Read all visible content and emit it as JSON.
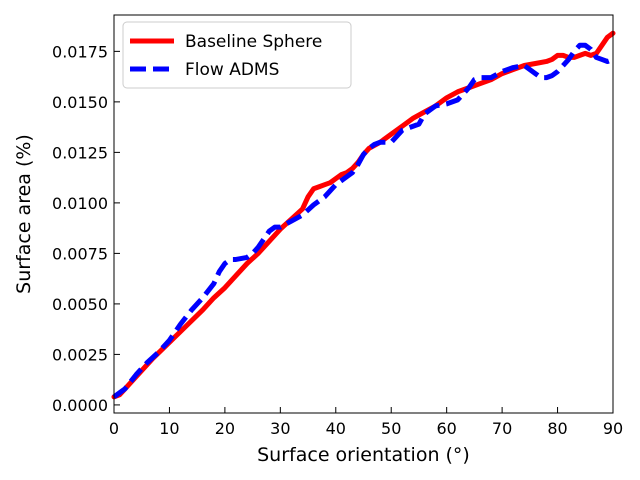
{
  "chart_data": {
    "type": "line",
    "title": "",
    "xlabel": "Surface orientation (°)",
    "ylabel": "Surface area (%)",
    "xlim": [
      0,
      90
    ],
    "ylim": [
      -0.0004,
      0.0193
    ],
    "xticks": [
      0,
      10,
      20,
      30,
      40,
      50,
      60,
      70,
      80,
      90
    ],
    "xtick_labels": [
      "0",
      "10",
      "20",
      "30",
      "40",
      "50",
      "60",
      "70",
      "80",
      "90"
    ],
    "yticks": [
      0.0,
      0.0025,
      0.005,
      0.0075,
      0.01,
      0.0125,
      0.015,
      0.0175
    ],
    "ytick_labels": [
      "0.0000",
      "0.0025",
      "0.0050",
      "0.0075",
      "0.0100",
      "0.0125",
      "0.0150",
      "0.0175"
    ],
    "grid": false,
    "legend_position": "top-left",
    "series": [
      {
        "name": "Baseline Sphere",
        "color": "#ff0000",
        "style": "solid",
        "x": [
          0,
          1,
          2,
          3,
          5,
          7,
          10,
          13,
          16,
          18,
          20,
          22,
          24,
          26,
          28,
          30,
          32,
          34,
          35,
          36,
          37,
          38,
          39,
          40,
          41,
          42,
          43,
          44,
          45,
          46,
          48,
          50,
          52,
          54,
          56,
          58,
          60,
          62,
          64,
          66,
          68,
          70,
          72,
          74,
          76,
          78,
          79,
          80,
          81,
          82,
          83,
          84,
          85,
          86,
          87,
          88,
          89,
          90
        ],
        "y": [
          0.0004,
          0.0005,
          0.0008,
          0.0011,
          0.0017,
          0.0023,
          0.0031,
          0.0039,
          0.0047,
          0.0053,
          0.0058,
          0.0064,
          0.007,
          0.0075,
          0.0081,
          0.0087,
          0.0092,
          0.0097,
          0.0103,
          0.0107,
          0.0108,
          0.0109,
          0.011,
          0.0112,
          0.0114,
          0.0115,
          0.0117,
          0.012,
          0.0124,
          0.0127,
          0.013,
          0.0134,
          0.0138,
          0.0142,
          0.0145,
          0.0148,
          0.0152,
          0.0155,
          0.0157,
          0.0159,
          0.0161,
          0.0164,
          0.0166,
          0.0168,
          0.0169,
          0.017,
          0.0171,
          0.0173,
          0.0173,
          0.0172,
          0.0172,
          0.0173,
          0.0174,
          0.0173,
          0.0174,
          0.0178,
          0.0182,
          0.0184
        ]
      },
      {
        "name": "Flow ADMS",
        "color": "#0000ff",
        "style": "dashed",
        "x": [
          0,
          1,
          2,
          4,
          6,
          8,
          10,
          12,
          14,
          16,
          18,
          19,
          20,
          21,
          22,
          24,
          25,
          26,
          27,
          28,
          29,
          30,
          32,
          34,
          36,
          38,
          40,
          42,
          43,
          44,
          45,
          46,
          47,
          48,
          50,
          52,
          54,
          55,
          56,
          58,
          60,
          62,
          64,
          65,
          66,
          68,
          70,
          72,
          74,
          76,
          77,
          78,
          79,
          80,
          81,
          82,
          83,
          84,
          85,
          86,
          87,
          88,
          89,
          90
        ],
        "y": [
          0.0004,
          0.0006,
          0.0008,
          0.0015,
          0.0021,
          0.0026,
          0.0032,
          0.004,
          0.0047,
          0.0053,
          0.006,
          0.0066,
          0.007,
          0.0072,
          0.0072,
          0.0073,
          0.0075,
          0.0078,
          0.0082,
          0.0086,
          0.0088,
          0.0088,
          0.0091,
          0.0094,
          0.0099,
          0.0103,
          0.0109,
          0.0113,
          0.0115,
          0.0119,
          0.0124,
          0.0127,
          0.0129,
          0.013,
          0.013,
          0.0136,
          0.0138,
          0.0139,
          0.0144,
          0.0148,
          0.0149,
          0.0151,
          0.0157,
          0.0161,
          0.0162,
          0.0162,
          0.0165,
          0.0167,
          0.0168,
          0.0164,
          0.0162,
          0.0162,
          0.0163,
          0.0165,
          0.0168,
          0.0171,
          0.0175,
          0.0178,
          0.0178,
          0.0176,
          0.0172,
          0.0171,
          0.017,
          0.0171
        ]
      }
    ]
  }
}
